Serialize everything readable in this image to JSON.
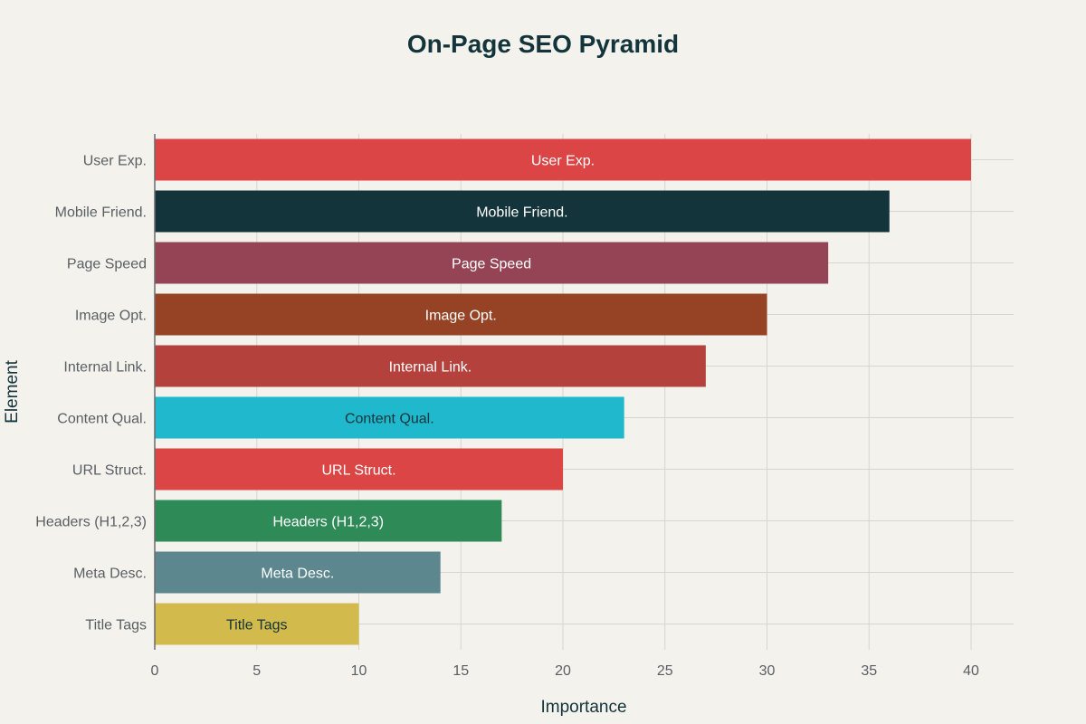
{
  "chart_data": {
    "type": "bar",
    "orientation": "horizontal",
    "title": "On-Page SEO Pyramid",
    "xlabel": "Importance",
    "ylabel": "Element",
    "xlim": [
      0,
      42
    ],
    "xticks": [
      0,
      5,
      10,
      15,
      20,
      25,
      30,
      35,
      40
    ],
    "grid": true,
    "legend": "none",
    "categories": [
      "User Exp.",
      "Mobile Friend.",
      "Page Speed",
      "Image Opt.",
      "Internal Link.",
      "Content Qual.",
      "URL Struct.",
      "Headers (H1,2,3)",
      "Meta Desc.",
      "Title Tags"
    ],
    "values": [
      40,
      36,
      33,
      30,
      27,
      23,
      20,
      17,
      14,
      10
    ],
    "colors": [
      "#db4545",
      "#13343b",
      "#944454",
      "#964325",
      "#b4413c",
      "#1fb8cd",
      "#db4545",
      "#2e8b57",
      "#5d878f",
      "#d2ba4c"
    ],
    "label_colors": [
      "#ffffff",
      "#ffffff",
      "#ffffff",
      "#ffffff",
      "#ffffff",
      "#13343b",
      "#ffffff",
      "#ffffff",
      "#ffffff",
      "#13343b"
    ]
  }
}
